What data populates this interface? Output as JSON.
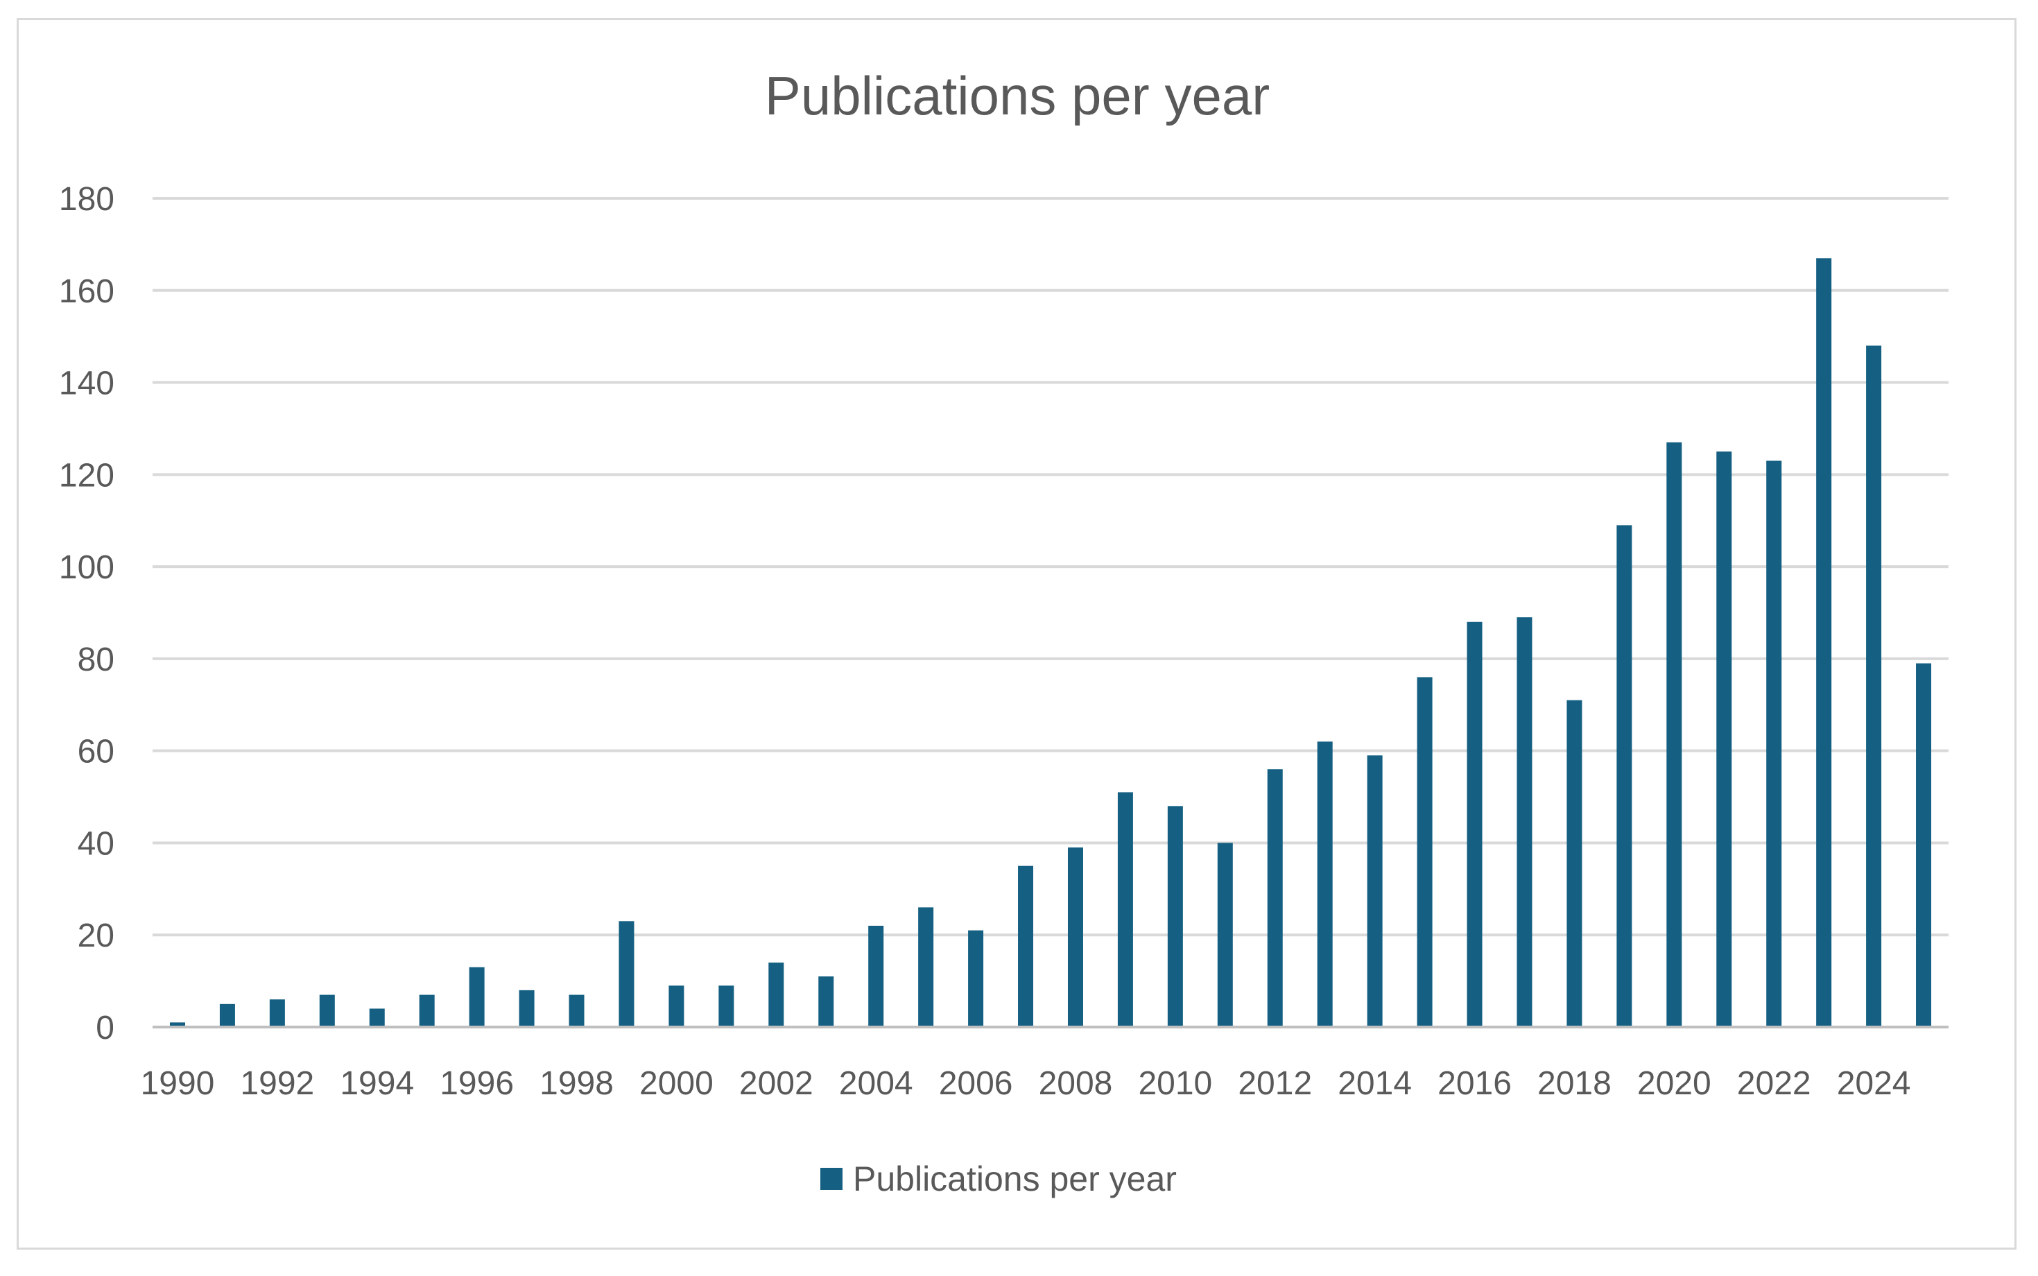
{
  "chart_data": {
    "type": "bar",
    "title": "Publications per year",
    "xlabel": "",
    "ylabel": "",
    "ylim": [
      0,
      180
    ],
    "y_ticks": [
      "0",
      "20",
      "40",
      "60",
      "80",
      "100",
      "120",
      "140",
      "160",
      "180"
    ],
    "categories": [
      "1990",
      "1991",
      "1992",
      "1993",
      "1994",
      "1995",
      "1996",
      "1997",
      "1998",
      "1999",
      "2000",
      "2001",
      "2002",
      "2003",
      "2004",
      "2005",
      "2006",
      "2007",
      "2008",
      "2009",
      "2010",
      "2011",
      "2012",
      "2013",
      "2014",
      "2015",
      "2016",
      "2017",
      "2018",
      "2019",
      "2020",
      "2021",
      "2022",
      "2023",
      "2024",
      "2025"
    ],
    "x_tick_labels": [
      "1990",
      "1992",
      "1994",
      "1996",
      "1998",
      "2000",
      "2002",
      "2004",
      "2006",
      "2008",
      "2010",
      "2012",
      "2014",
      "2016",
      "2018",
      "2020",
      "2022",
      "2024"
    ],
    "series": [
      {
        "name": "Publications per year",
        "color": "#156082",
        "values": [
          1,
          5,
          6,
          7,
          4,
          7,
          13,
          8,
          7,
          23,
          9,
          9,
          14,
          11,
          22,
          26,
          21,
          35,
          39,
          51,
          48,
          40,
          56,
          62,
          59,
          76,
          88,
          89,
          71,
          109,
          127,
          125,
          123,
          167,
          148,
          79
        ]
      }
    ],
    "grid": true,
    "legend_position": "bottom"
  }
}
